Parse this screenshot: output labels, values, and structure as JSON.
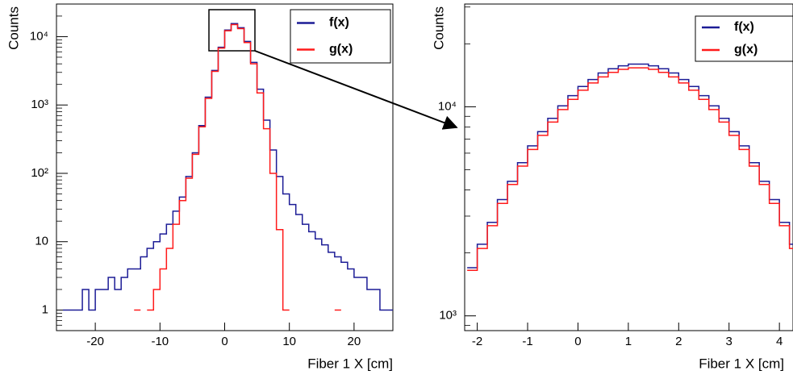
{
  "charts": [
    {
      "chart_data": {
        "type": "step",
        "log_y": true,
        "xlabel": "Fiber 1 X [cm]",
        "ylabel": "Counts",
        "xlim": [
          -26,
          26
        ],
        "ylim": [
          0.5,
          30000
        ],
        "xticks": [
          -20,
          -10,
          0,
          10,
          20
        ],
        "yticks": [
          1,
          10,
          {
            "value": 100,
            "label": "10²"
          },
          {
            "value": 1000,
            "label": "10³"
          },
          {
            "value": 10000,
            "label": "10⁴"
          }
        ],
        "legend": "upper right",
        "x": [
          -25,
          -24,
          -23,
          -22,
          -21,
          -20,
          -19,
          -18,
          -17,
          -16,
          -15,
          -14,
          -13,
          -12,
          -11,
          -10,
          -9,
          -8,
          -7,
          -6,
          -5,
          -4,
          -3,
          -2,
          -1,
          0,
          1,
          2,
          3,
          4,
          5,
          6,
          7,
          8,
          9,
          10,
          11,
          12,
          13,
          14,
          15,
          16,
          17,
          18,
          19,
          20,
          21,
          22,
          23,
          24,
          25
        ],
        "series": [
          {
            "name": "f(x)",
            "color": "#1c1c96",
            "values": [
              1,
              1,
              1,
              2,
              1,
              2,
              2,
              3,
              2,
              3,
              4,
              4,
              6,
              8,
              10,
              13,
              18,
              28,
              45,
              90,
              200,
              500,
              1300,
              3200,
              7000,
              12500,
              15500,
              13500,
              8500,
              4200,
              1700,
              600,
              220,
              90,
              50,
              35,
              25,
              18,
              14,
              11,
              9,
              7,
              6,
              5,
              4,
              3,
              3,
              2,
              2,
              1,
              1
            ]
          },
          {
            "name": "g(x)",
            "color": "#ff1a1a",
            "values": [
              null,
              null,
              null,
              null,
              null,
              null,
              null,
              null,
              null,
              null,
              null,
              1,
              null,
              1,
              2,
              4,
              8,
              18,
              40,
              85,
              190,
              480,
              1250,
              3100,
              6800,
              12200,
              15000,
              13100,
              8200,
              4000,
              1500,
              450,
              100,
              15,
              1,
              null,
              null,
              null,
              null,
              null,
              null,
              null,
              1,
              null,
              null,
              null,
              null,
              null,
              null,
              null,
              null
            ]
          }
        ]
      }
    },
    {
      "chart_data": {
        "type": "step",
        "log_y": true,
        "xlabel": "Fiber 1 X [cm]",
        "ylabel": "Counts",
        "xlim": [
          -2.25,
          4.27
        ],
        "ylim": [
          850,
          31000
        ],
        "xticks": [
          -2,
          -1,
          0,
          1,
          2,
          3,
          4
        ],
        "yticks": [
          {
            "value": 1000,
            "label": "10³"
          },
          {
            "value": 10000,
            "label": "10⁴"
          }
        ],
        "legend": "upper right",
        "x": [
          -2.2,
          -2.0,
          -1.8,
          -1.6,
          -1.4,
          -1.2,
          -1.0,
          -0.8,
          -0.6,
          -0.4,
          -0.2,
          0.0,
          0.2,
          0.4,
          0.6,
          0.8,
          1.0,
          1.2,
          1.4,
          1.6,
          1.8,
          2.0,
          2.2,
          2.4,
          2.6,
          2.8,
          3.0,
          3.2,
          3.4,
          3.6,
          3.8,
          4.0,
          4.2
        ],
        "series": [
          {
            "name": "f(x)",
            "color": "#1c1c96",
            "values": [
              1700,
              2200,
              2800,
              3600,
              4400,
              5400,
              6500,
              7600,
              8800,
              10100,
              11300,
              12500,
              13500,
              14500,
              15200,
              15700,
              16000,
              16000,
              15700,
              15200,
              14500,
              13500,
              12500,
              11300,
              10100,
              8800,
              7600,
              6500,
              5400,
              4400,
              3600,
              2800,
              2200
            ]
          },
          {
            "name": "g(x)",
            "color": "#ff1a1a",
            "values": [
              1650,
              2100,
              2700,
              3450,
              4250,
              5200,
              6250,
              7300,
              8450,
              9700,
              10850,
              12000,
              13000,
              13900,
              14600,
              15100,
              15350,
              15350,
              15100,
              14600,
              13900,
              13000,
              12000,
              10850,
              9700,
              8450,
              7300,
              6250,
              5200,
              4250,
              3450,
              2700,
              2100
            ]
          }
        ]
      }
    }
  ]
}
